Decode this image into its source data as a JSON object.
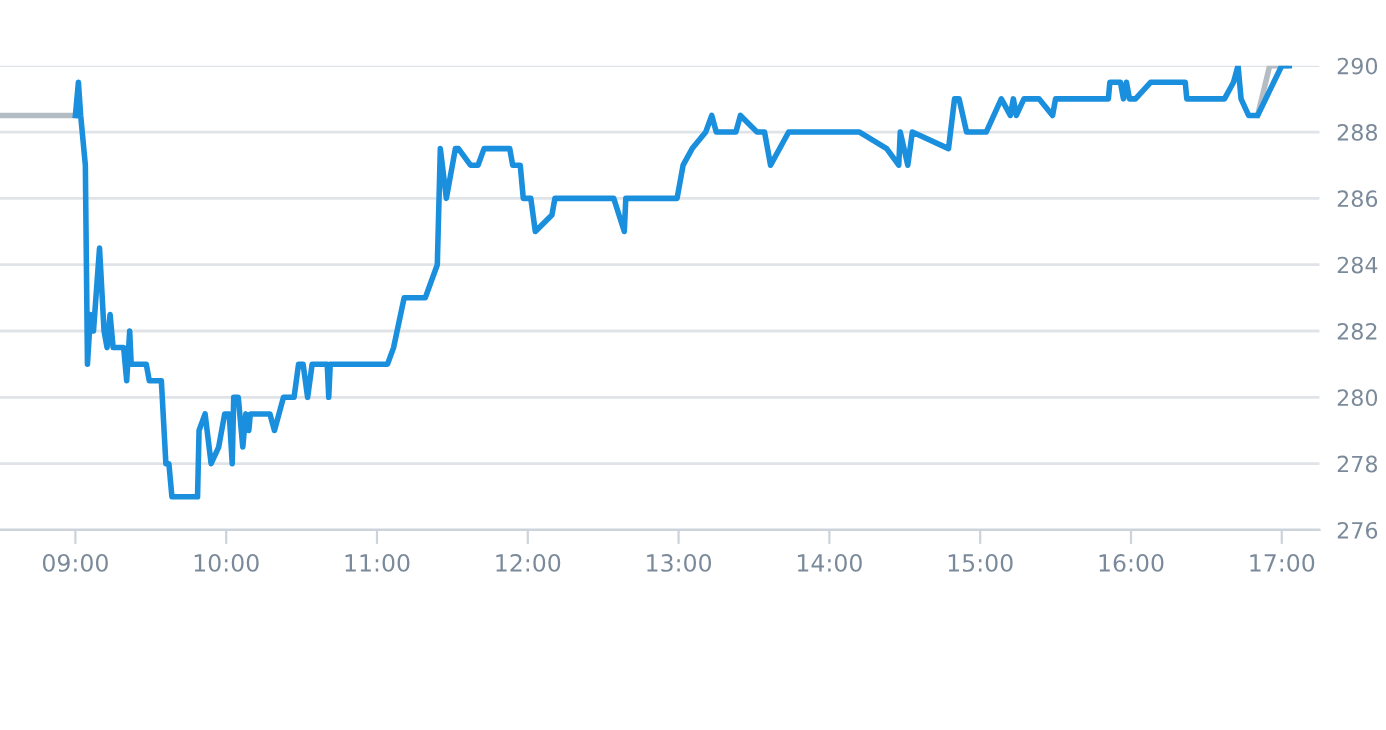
{
  "chart_data": {
    "type": "line",
    "xlim": [
      8.5,
      17.25
    ],
    "ylim": [
      276,
      290
    ],
    "xticks": [
      {
        "value": 9,
        "label": "09:00"
      },
      {
        "value": 10,
        "label": "10:00"
      },
      {
        "value": 11,
        "label": "11:00"
      },
      {
        "value": 12,
        "label": "12:00"
      },
      {
        "value": 13,
        "label": "13:00"
      },
      {
        "value": 14,
        "label": "14:00"
      },
      {
        "value": 15,
        "label": "15:00"
      },
      {
        "value": 16,
        "label": "16:00"
      },
      {
        "value": 17,
        "label": "17:00"
      }
    ],
    "yticks": [
      276,
      278,
      280,
      282,
      284,
      286,
      288,
      290
    ],
    "grid": "y",
    "marker": "none",
    "line_style": "solid",
    "series": [
      {
        "color": "#b4bcc4",
        "x": [
          8.5,
          9.0,
          12.0,
          16.84,
          16.92,
          17.03
        ],
        "values": [
          288.5,
          288.5,
          null,
          288.5,
          290,
          290
        ]
      },
      {
        "color": "#1a8fdd",
        "x": [
          9.0,
          9.02,
          9.035,
          9.066,
          9.08,
          9.1,
          9.12,
          9.16,
          9.19,
          9.21,
          9.23,
          9.25,
          9.32,
          9.34,
          9.36,
          9.37,
          9.47,
          9.49,
          9.57,
          9.6,
          9.62,
          9.64,
          9.81,
          9.82,
          9.86,
          9.9,
          9.95,
          9.99,
          10.02,
          10.04,
          10.05,
          10.08,
          10.11,
          10.13,
          10.15,
          10.16,
          10.29,
          10.32,
          10.38,
          10.45,
          10.48,
          10.51,
          10.54,
          10.57,
          10.67,
          10.68,
          10.69,
          11.07,
          11.11,
          11.18,
          11.32,
          11.36,
          11.4,
          11.42,
          11.46,
          11.52,
          11.54,
          11.62,
          11.67,
          11.71,
          11.88,
          11.9,
          11.95,
          11.97,
          12.02,
          12.05,
          12.16,
          12.18,
          12.57,
          12.64,
          12.65,
          12.99,
          13.03,
          13.09,
          13.18,
          13.22,
          13.25,
          13.38,
          13.41,
          13.52,
          13.57,
          13.61,
          13.73,
          14.2,
          14.38,
          14.46,
          14.47,
          14.52,
          14.55,
          14.79,
          14.83,
          14.86,
          14.91,
          15.04,
          15.14,
          15.2,
          15.22,
          15.24,
          15.29,
          15.39,
          15.48,
          15.5,
          15.85,
          15.86,
          15.93,
          15.95,
          15.97,
          15.99,
          16.03,
          16.13,
          16.36,
          16.37,
          16.62,
          16.68,
          16.71,
          16.73,
          16.78,
          16.84,
          17.0,
          17.05
        ],
        "values": [
          288.5,
          289.5,
          288.5,
          287,
          281,
          282.5,
          282,
          284.5,
          282,
          281.5,
          282.5,
          281.5,
          281.5,
          280.5,
          282,
          281,
          281,
          280.5,
          280.5,
          278,
          278,
          277,
          277,
          279,
          279.5,
          278,
          278.5,
          279.5,
          279.5,
          278,
          280,
          280,
          278.5,
          279.5,
          279,
          279.5,
          279.5,
          279,
          280,
          280,
          281,
          281,
          280,
          281,
          281,
          280,
          281,
          281,
          281.5,
          283,
          283,
          283.5,
          284,
          287.5,
          286,
          287.5,
          287.5,
          287,
          287,
          287.5,
          287.5,
          287,
          287,
          286,
          286,
          285,
          285.5,
          286,
          286,
          285,
          286,
          286,
          287,
          287.5,
          288,
          288.5,
          288,
          288,
          288.5,
          288,
          288,
          287,
          288,
          288,
          287.5,
          287,
          288,
          287,
          288,
          287.5,
          289,
          289,
          288,
          288,
          289,
          288.5,
          289,
          288.5,
          289,
          289,
          288.5,
          289,
          289,
          289.5,
          289.5,
          289,
          289.5,
          289,
          289,
          289.5,
          289.5,
          289,
          289,
          289.5,
          290,
          289,
          288.5,
          288.5,
          290,
          290
        ]
      }
    ]
  }
}
